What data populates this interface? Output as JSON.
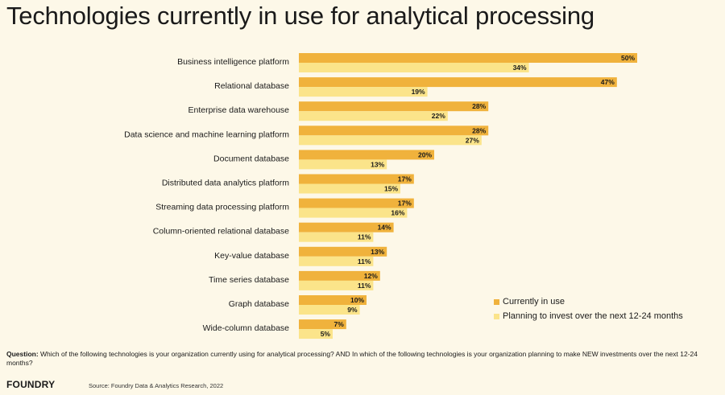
{
  "title": "Technologies currently in use for analytical processing",
  "colors": {
    "current": "#f0b23c",
    "planning": "#fbe48a",
    "background": "#fdf8e8"
  },
  "chart_data": {
    "type": "bar",
    "orientation": "horizontal",
    "categories": [
      "Business intelligence platform",
      "Relational database",
      "Enterprise data warehouse",
      "Data science and machine learning platform",
      "Document database",
      "Distributed data analytics platform",
      "Streaming data processing platform",
      "Column-oriented relational database",
      "Key-value database",
      "Time series database",
      "Graph database",
      "Wide-column database"
    ],
    "series": [
      {
        "name": "Currently in use",
        "values": [
          50,
          47,
          28,
          28,
          20,
          17,
          17,
          14,
          13,
          12,
          10,
          7
        ]
      },
      {
        "name": "Planning to invest over the next 12-24 months",
        "values": [
          34,
          19,
          22,
          27,
          13,
          15,
          16,
          11,
          11,
          11,
          9,
          5
        ]
      }
    ],
    "value_suffix": "%",
    "xlim": [
      0,
      50
    ],
    "legend_position": "bottom-right",
    "grid": false
  },
  "legend": {
    "current_label": "Currently in use",
    "planning_label": "Planning to invest over the next 12-24 months"
  },
  "question": {
    "label": "Question:",
    "text": " Which of the following technologies is your organization currently using for analytical processing? AND In which of the following technologies is your organization planning to make NEW investments over the next 12-24 months?"
  },
  "logo": "FOUNDRY",
  "source": "Source: Foundry Data & Analytics Research, 2022"
}
